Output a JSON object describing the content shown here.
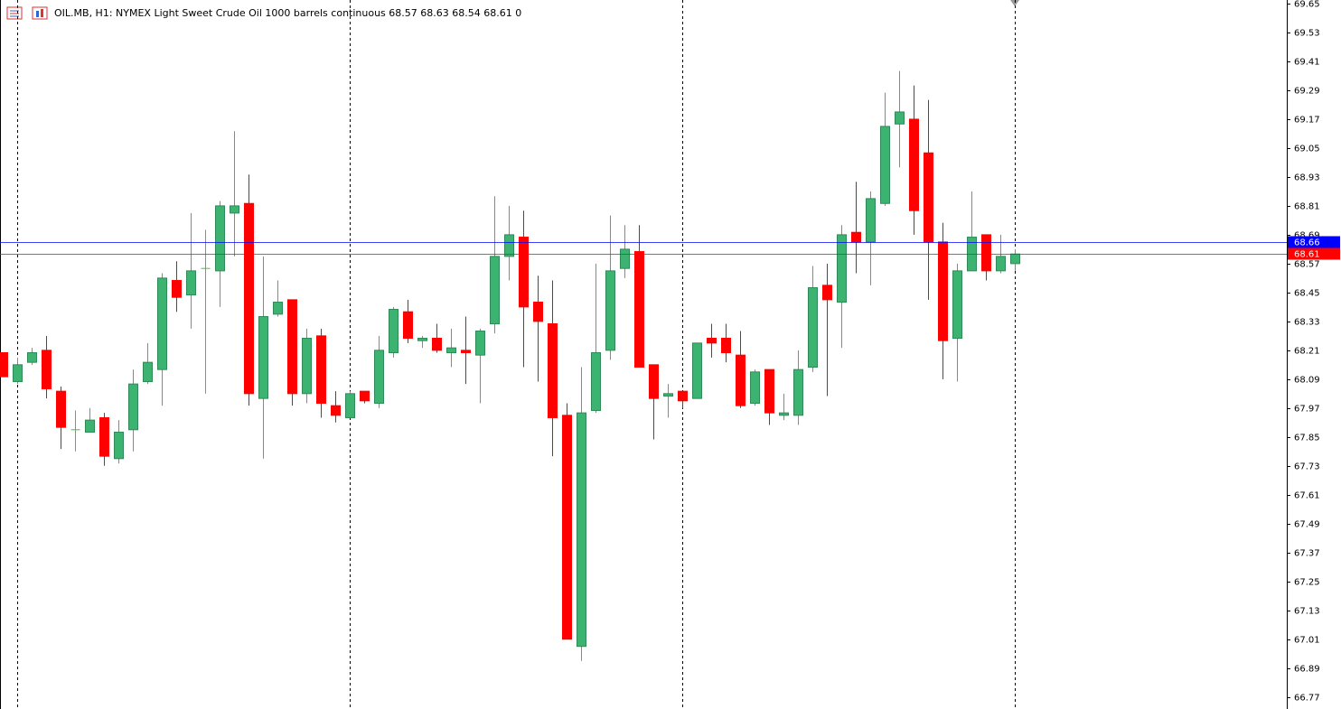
{
  "chart_data": {
    "type": "candlestick",
    "title": "OIL.MB, H1:  NYMEX Light Sweet Crude Oil 1000 barrels continuous  68.57 68.63 68.54 68.61  0",
    "open": [
      68.2,
      68.08,
      68.16,
      68.21,
      68.04,
      67.88,
      67.87,
      67.93,
      67.76,
      67.88,
      68.08,
      68.13,
      68.5,
      68.44,
      68.55,
      68.54,
      68.78,
      68.82,
      68.01,
      68.36,
      68.42,
      68.03,
      68.27,
      67.98,
      67.93,
      68.04,
      67.99,
      68.2,
      68.37,
      68.25,
      68.26,
      68.2,
      68.21,
      68.19,
      68.32,
      68.6,
      68.68,
      68.41,
      68.32,
      67.94,
      66.98,
      67.96,
      68.21,
      68.55,
      68.62,
      68.15,
      68.02,
      68.04,
      68.01,
      68.26,
      68.26,
      68.19,
      67.99,
      68.13,
      67.94,
      67.94,
      68.14,
      68.48,
      68.41,
      68.7,
      68.66,
      68.82,
      69.15,
      69.17,
      69.03,
      68.66,
      68.26,
      68.54,
      68.69,
      68.54,
      68.57
    ],
    "high": [
      68.2,
      68.18,
      68.22,
      68.27,
      68.06,
      67.96,
      67.97,
      67.95,
      67.92,
      68.13,
      68.24,
      68.53,
      68.58,
      68.78,
      68.71,
      68.83,
      69.12,
      68.94,
      68.6,
      68.5,
      68.42,
      68.3,
      68.3,
      68.04,
      68.04,
      68.04,
      68.27,
      68.39,
      68.42,
      68.27,
      68.32,
      68.3,
      68.35,
      68.3,
      68.85,
      68.81,
      68.79,
      68.52,
      68.5,
      67.99,
      68.14,
      68.57,
      68.77,
      68.73,
      68.73,
      68.15,
      68.07,
      68.04,
      68.24,
      68.32,
      68.32,
      68.29,
      68.13,
      68.13,
      68.03,
      68.21,
      68.56,
      68.57,
      68.73,
      68.91,
      68.87,
      69.28,
      69.37,
      69.31,
      69.25,
      68.74,
      68.57,
      68.87,
      68.69,
      68.69,
      68.63
    ],
    "low": [
      68.1,
      68.07,
      68.15,
      68.01,
      67.8,
      67.79,
      67.87,
      67.73,
      67.74,
      67.79,
      68.07,
      67.98,
      68.37,
      68.3,
      68.03,
      68.39,
      68.6,
      67.98,
      67.76,
      68.35,
      67.98,
      67.99,
      67.93,
      67.91,
      67.93,
      67.99,
      67.97,
      68.18,
      68.24,
      68.22,
      68.2,
      68.14,
      68.07,
      67.99,
      68.28,
      68.5,
      68.14,
      68.08,
      67.77,
      67.01,
      66.92,
      67.95,
      68.17,
      68.51,
      68.14,
      67.84,
      67.93,
      67.97,
      68.01,
      68.18,
      68.16,
      67.97,
      67.98,
      67.9,
      67.92,
      67.9,
      68.12,
      68.02,
      68.22,
      68.53,
      68.48,
      68.81,
      68.97,
      68.69,
      68.42,
      68.09,
      68.08,
      68.54,
      68.5,
      68.53,
      68.54
    ],
    "close": [
      68.1,
      68.15,
      68.2,
      68.05,
      67.89,
      67.88,
      67.92,
      67.77,
      67.87,
      68.07,
      68.16,
      68.51,
      68.43,
      68.54,
      68.55,
      68.81,
      68.81,
      68.03,
      68.35,
      68.41,
      68.03,
      68.26,
      67.99,
      67.94,
      68.03,
      68.0,
      68.21,
      68.38,
      68.26,
      68.26,
      68.21,
      68.22,
      68.2,
      68.29,
      68.6,
      68.69,
      68.39,
      68.33,
      67.93,
      67.01,
      67.95,
      68.2,
      68.54,
      68.63,
      68.14,
      68.01,
      68.03,
      68.0,
      68.24,
      68.24,
      68.2,
      67.98,
      68.12,
      67.95,
      67.95,
      68.13,
      68.47,
      68.42,
      68.69,
      68.66,
      68.84,
      69.14,
      69.2,
      68.79,
      68.66,
      68.25,
      68.54,
      68.68,
      68.54,
      68.6,
      68.61
    ],
    "up_color": "#3cb371",
    "down_color": "#ff0000",
    "doji_color": "#32cd32",
    "ylim": [
      66.72,
      69.65
    ],
    "yticks": [
      69.65,
      69.53,
      69.41,
      69.29,
      69.17,
      69.05,
      68.93,
      68.81,
      68.69,
      68.57,
      68.45,
      68.33,
      68.21,
      68.09,
      67.97,
      67.85,
      67.73,
      67.61,
      67.49,
      67.37,
      67.25,
      67.13,
      67.01,
      66.89,
      66.77
    ],
    "price_lines": [
      {
        "value": 68.66,
        "color": "#0000ff"
      },
      {
        "value": 68.61,
        "color": "#ff0000"
      }
    ],
    "period_separators": [
      1,
      24,
      47,
      70
    ]
  }
}
